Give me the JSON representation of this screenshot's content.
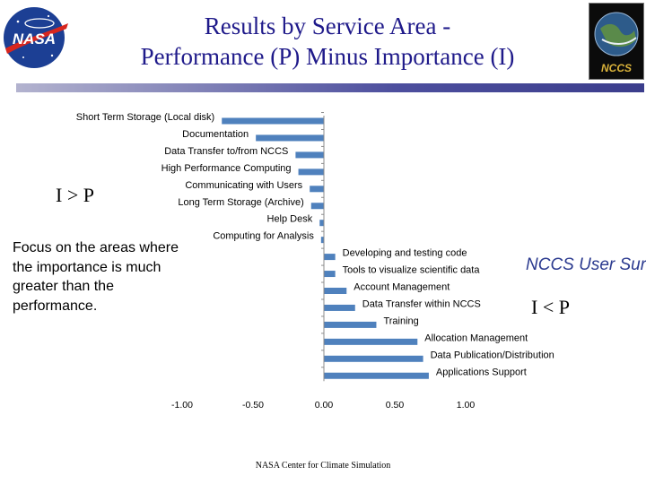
{
  "header": {
    "title_line1": "Results by Service Area -",
    "title_line2": "Performance (P) Minus Importance (I)",
    "left_logo_text": "NASA",
    "right_logo_text": "NCCS"
  },
  "annotations": {
    "i_greater_p": "I > P",
    "i_less_p": "I < P",
    "focus_note": "Focus on the areas where the importance is much greater than the performance.",
    "side_tag": "NCCS User Sur"
  },
  "footer": "NASA Center for Climate Simulation",
  "colors": {
    "bar": "#4f81bd",
    "title": "#1f1a8a",
    "tag": "#2b3a8f"
  },
  "chart_data": {
    "type": "bar",
    "orientation": "horizontal",
    "categories": [
      "Short Term Storage (Local disk)",
      "Documentation",
      "Data Transfer to/from  NCCS",
      "High Performance Computing",
      "Communicating with Users",
      "Long Term Storage (Archive)",
      "Help Desk",
      "Computing for Analysis",
      "Developing and testing code",
      "Tools to visualize scientific data",
      "Account  Management",
      "Data Transfer  within  NCCS",
      "Training",
      "Allocation  Management",
      "Data Publication/Distribution",
      "Applications Support"
    ],
    "values": [
      -0.72,
      -0.48,
      -0.2,
      -0.18,
      -0.1,
      -0.09,
      -0.03,
      -0.02,
      0.08,
      0.08,
      0.16,
      0.22,
      0.37,
      0.66,
      0.7,
      0.74
    ],
    "xlim": [
      -1.0,
      1.0
    ],
    "xticks": [
      -1.0,
      -0.5,
      0.0,
      0.5,
      1.0
    ],
    "xtick_labels": [
      "-1.00",
      "-0.50",
      "0.00",
      "0.50",
      "1.00"
    ],
    "grid": false
  }
}
